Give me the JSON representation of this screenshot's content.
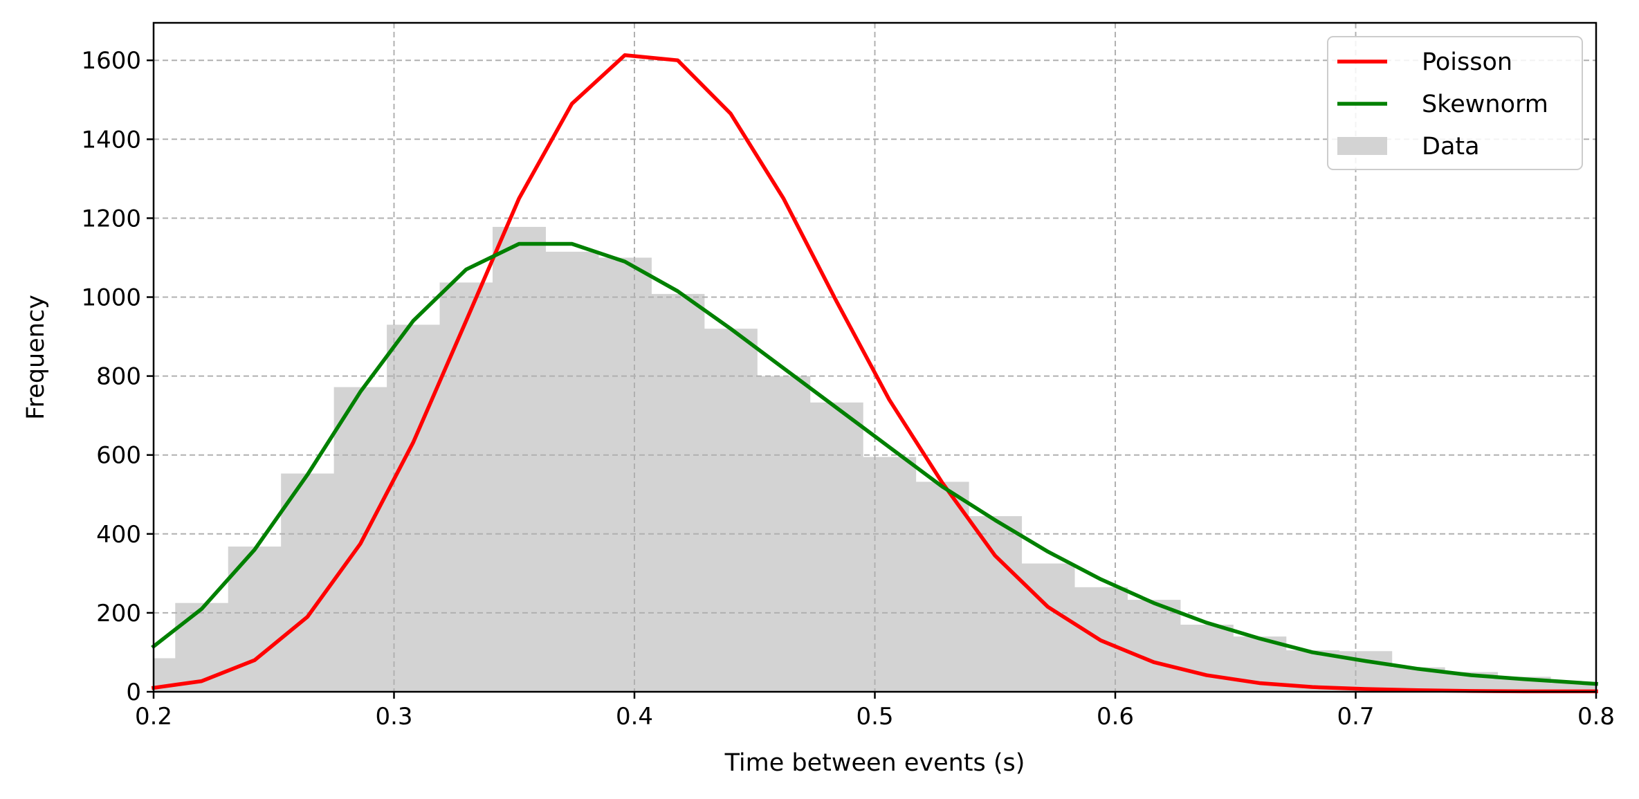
{
  "chart_data": {
    "type": "histogram-with-lines",
    "title": "",
    "xlabel": "Time between events (s)",
    "ylabel": "Frequency",
    "xlim": [
      0.2,
      0.8
    ],
    "ylim": [
      0,
      1695
    ],
    "grid": true,
    "x_ticks": [
      0.2,
      0.3,
      0.4,
      0.5,
      0.6,
      0.7,
      0.8
    ],
    "x_tick_labels": [
      "0.2",
      "0.3",
      "0.4",
      "0.5",
      "0.6",
      "0.7",
      "0.8"
    ],
    "y_ticks": [
      0,
      200,
      400,
      600,
      800,
      1000,
      1200,
      1400,
      1600
    ],
    "y_tick_labels": [
      "0",
      "200",
      "400",
      "600",
      "800",
      "1000",
      "1200",
      "1400",
      "1600"
    ],
    "legend_position": "top-right",
    "histogram": {
      "name": "Data",
      "color": "#d3d3d3",
      "bins": [
        {
          "x0": 0.2,
          "x1": 0.209,
          "value": 85
        },
        {
          "x0": 0.209,
          "x1": 0.231,
          "value": 225
        },
        {
          "x0": 0.231,
          "x1": 0.253,
          "value": 368
        },
        {
          "x0": 0.253,
          "x1": 0.275,
          "value": 553
        },
        {
          "x0": 0.275,
          "x1": 0.297,
          "value": 772
        },
        {
          "x0": 0.297,
          "x1": 0.319,
          "value": 930
        },
        {
          "x0": 0.319,
          "x1": 0.341,
          "value": 1037
        },
        {
          "x0": 0.341,
          "x1": 0.363,
          "value": 1178
        },
        {
          "x0": 0.363,
          "x1": 0.385,
          "value": 1115
        },
        {
          "x0": 0.385,
          "x1": 0.407,
          "value": 1100
        },
        {
          "x0": 0.407,
          "x1": 0.429,
          "value": 1008
        },
        {
          "x0": 0.429,
          "x1": 0.451,
          "value": 920
        },
        {
          "x0": 0.451,
          "x1": 0.473,
          "value": 800
        },
        {
          "x0": 0.473,
          "x1": 0.495,
          "value": 733
        },
        {
          "x0": 0.495,
          "x1": 0.517,
          "value": 595
        },
        {
          "x0": 0.517,
          "x1": 0.539,
          "value": 532
        },
        {
          "x0": 0.539,
          "x1": 0.561,
          "value": 445
        },
        {
          "x0": 0.561,
          "x1": 0.583,
          "value": 325
        },
        {
          "x0": 0.583,
          "x1": 0.605,
          "value": 265
        },
        {
          "x0": 0.605,
          "x1": 0.627,
          "value": 233
        },
        {
          "x0": 0.627,
          "x1": 0.649,
          "value": 170
        },
        {
          "x0": 0.649,
          "x1": 0.671,
          "value": 140
        },
        {
          "x0": 0.671,
          "x1": 0.693,
          "value": 105
        },
        {
          "x0": 0.693,
          "x1": 0.715,
          "value": 103
        },
        {
          "x0": 0.715,
          "x1": 0.737,
          "value": 62
        },
        {
          "x0": 0.737,
          "x1": 0.759,
          "value": 50
        },
        {
          "x0": 0.759,
          "x1": 0.781,
          "value": 38
        },
        {
          "x0": 0.781,
          "x1": 0.8,
          "value": 22
        }
      ]
    },
    "series": [
      {
        "name": "Poisson",
        "color": "#ff0000",
        "x": [
          0.2,
          0.22,
          0.242,
          0.264,
          0.286,
          0.308,
          0.33,
          0.352,
          0.374,
          0.396,
          0.418,
          0.44,
          0.462,
          0.484,
          0.506,
          0.528,
          0.55,
          0.572,
          0.594,
          0.616,
          0.638,
          0.66,
          0.682,
          0.704,
          0.726,
          0.748,
          0.77,
          0.8
        ],
        "y": [
          10,
          27,
          80,
          190,
          375,
          632,
          940,
          1250,
          1490,
          1613,
          1600,
          1465,
          1250,
          990,
          740,
          530,
          345,
          215,
          130,
          75,
          42,
          22,
          12,
          7,
          4,
          2,
          1,
          1
        ]
      },
      {
        "name": "Skewnorm",
        "color": "#008000",
        "x": [
          0.2,
          0.22,
          0.242,
          0.264,
          0.286,
          0.308,
          0.33,
          0.352,
          0.374,
          0.396,
          0.418,
          0.44,
          0.462,
          0.484,
          0.506,
          0.528,
          0.55,
          0.572,
          0.594,
          0.616,
          0.638,
          0.66,
          0.682,
          0.704,
          0.726,
          0.748,
          0.77,
          0.8
        ],
        "y": [
          115,
          210,
          360,
          550,
          760,
          940,
          1070,
          1135,
          1135,
          1090,
          1015,
          920,
          820,
          720,
          620,
          520,
          435,
          355,
          285,
          225,
          175,
          135,
          100,
          78,
          58,
          42,
          32,
          20
        ]
      }
    ],
    "legend": [
      {
        "label": "Poisson",
        "kind": "line",
        "color": "#ff0000"
      },
      {
        "label": "Skewnorm",
        "kind": "line",
        "color": "#008000"
      },
      {
        "label": "Data",
        "kind": "patch",
        "color": "#d3d3d3"
      }
    ]
  }
}
